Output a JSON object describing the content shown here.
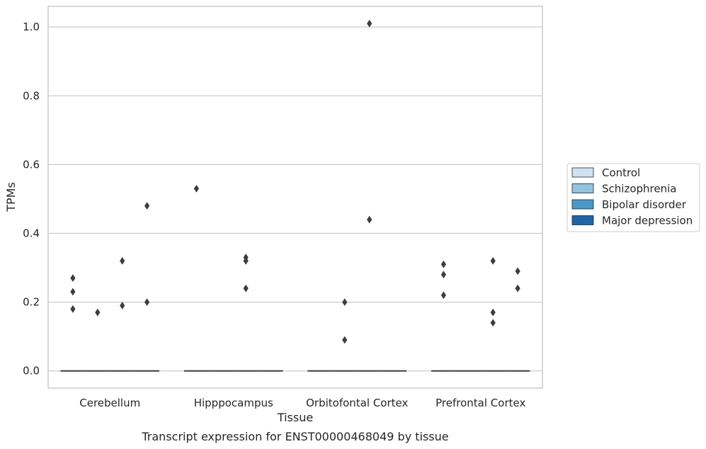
{
  "chart_data": {
    "type": "box",
    "caption": "Transcript expression for ENST00000468049 by tissue",
    "xlabel": "Tissue",
    "ylabel": "TPMs",
    "ylim": [
      -0.05,
      1.06
    ],
    "y_ticks": [
      0.0,
      0.2,
      0.4,
      0.6,
      0.8,
      1.0
    ],
    "y_tick_labels": [
      "0.0",
      "0.2",
      "0.4",
      "0.6",
      "0.8",
      "1.0"
    ],
    "grid": true,
    "legend_position": "right",
    "categories": [
      "Cerebellum",
      "Hipppocampus",
      "Orbitofontal Cortex",
      "Prefrontal Cortex"
    ],
    "series": [
      {
        "name": "Control",
        "color": "#cfe1f2",
        "median": [
          0,
          0,
          0,
          0
        ],
        "outliers": [
          [
            0.27,
            0.23,
            0.18
          ],
          [
            0.53
          ],
          [],
          [
            0.31,
            0.28,
            0.22
          ]
        ]
      },
      {
        "name": "Schizophrenia",
        "color": "#93c4de",
        "median": [
          0,
          0,
          0,
          0
        ],
        "outliers": [
          [
            0.17
          ],
          [],
          [
            0.2,
            0.09
          ],
          []
        ]
      },
      {
        "name": "Bipolar disorder",
        "color": "#4b98c9",
        "median": [
          0,
          0,
          0,
          0
        ],
        "outliers": [
          [
            0.32,
            0.19
          ],
          [
            0.33,
            0.32,
            0.24
          ],
          [
            1.01,
            0.44
          ],
          [
            0.32,
            0.17,
            0.14
          ]
        ]
      },
      {
        "name": "Major depression",
        "color": "#2164a6",
        "median": [
          0,
          0,
          0,
          0
        ],
        "outliers": [
          [
            0.48,
            0.2
          ],
          [],
          [],
          [
            0.29,
            0.24
          ]
        ]
      }
    ]
  }
}
